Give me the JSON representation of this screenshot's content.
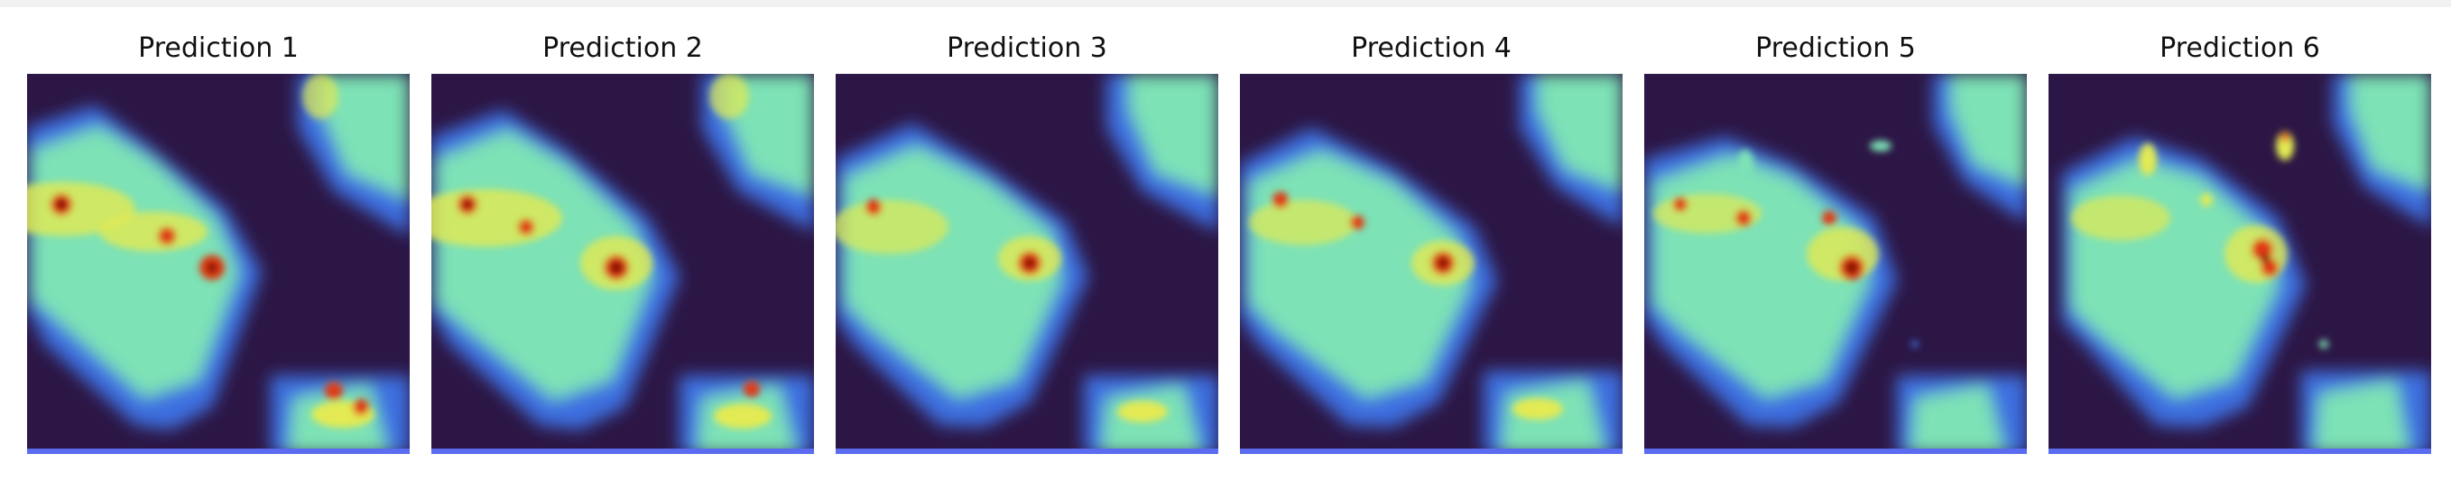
{
  "colors": {
    "background": "#2c1645",
    "low": "#3d6fe0",
    "mid": "#7de2b6",
    "high": "#e3ea52",
    "peak": "#e03a14",
    "core": "#7a0b05"
  },
  "panels": [
    {
      "title": "Prediction 1",
      "icon": "heatmap-image"
    },
    {
      "title": "Prediction 2",
      "icon": "heatmap-image"
    },
    {
      "title": "Prediction 3",
      "icon": "heatmap-image"
    },
    {
      "title": "Prediction 4",
      "icon": "heatmap-image"
    },
    {
      "title": "Prediction 5",
      "icon": "heatmap-image"
    },
    {
      "title": "Prediction 6",
      "icon": "heatmap-image"
    }
  ]
}
